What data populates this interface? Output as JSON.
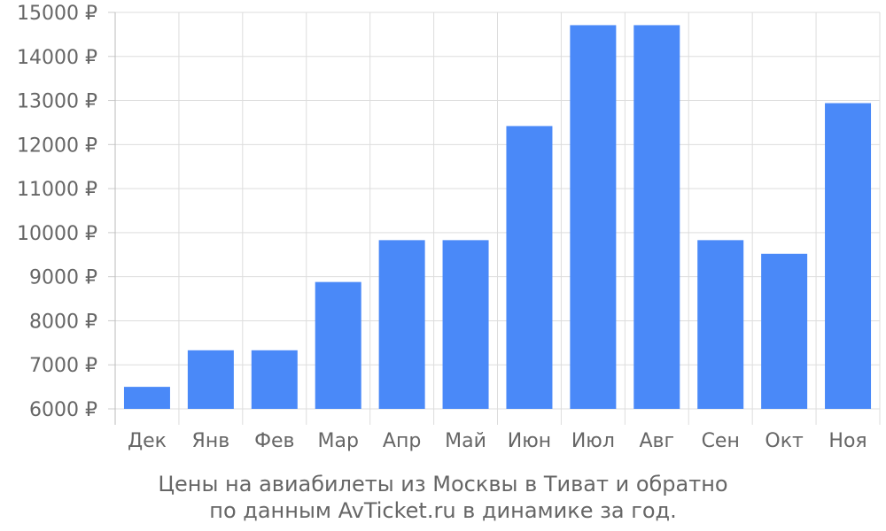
{
  "chart_data": {
    "type": "bar",
    "categories": [
      "Дек",
      "Янв",
      "Фев",
      "Мар",
      "Апр",
      "Май",
      "Июн",
      "Июл",
      "Авг",
      "Сен",
      "Окт",
      "Ноя"
    ],
    "values": [
      6500,
      7330,
      7330,
      8880,
      9830,
      9830,
      12420,
      14710,
      14710,
      9830,
      9520,
      12940
    ],
    "ylim": [
      6000,
      15000
    ],
    "yticks": [
      6000,
      7000,
      8000,
      9000,
      10000,
      11000,
      12000,
      13000,
      14000,
      15000
    ],
    "ytick_labels": [
      "6000 ₽",
      "7000 ₽",
      "8000 ₽",
      "9000 ₽",
      "10000 ₽",
      "11000 ₽",
      "12000 ₽",
      "13000 ₽",
      "14000 ₽",
      "15000 ₽"
    ],
    "grid": true,
    "bar_color": "#4a89f8",
    "xlabel": "",
    "ylabel": ""
  },
  "caption": {
    "line1": "Цены на авиабилеты из Москвы в Тиват и обратно",
    "line2": "по данным AvTicket.ru в динамике за год."
  }
}
